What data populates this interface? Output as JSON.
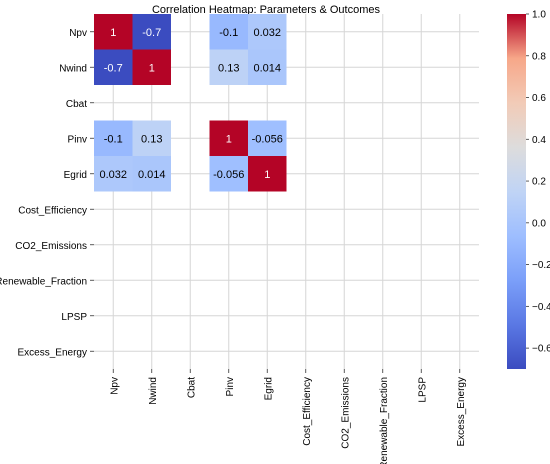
{
  "chart_data": {
    "type": "heatmap",
    "title": "Correlation Heatmap: Parameters & Outcomes",
    "rows": [
      "Npv",
      "Nwind",
      "Cbat",
      "Pinv",
      "Egrid",
      "Cost_Efficiency",
      "CO2_Emissions",
      "Renewable_Fraction",
      "LPSP",
      "Excess_Energy"
    ],
    "columns": [
      "Npv",
      "Nwind",
      "Cbat",
      "Pinv",
      "Egrid",
      "Cost_Efficiency",
      "CO2_Emissions",
      "Renewable_Fraction",
      "LPSP",
      "Excess_Energy"
    ],
    "values": [
      [
        1,
        -0.7,
        null,
        -0.1,
        0.032,
        null,
        null,
        null,
        null,
        null
      ],
      [
        -0.7,
        1,
        null,
        0.13,
        0.014,
        null,
        null,
        null,
        null,
        null
      ],
      [
        null,
        null,
        null,
        null,
        null,
        null,
        null,
        null,
        null,
        null
      ],
      [
        -0.1,
        0.13,
        null,
        1,
        -0.056,
        null,
        null,
        null,
        null,
        null
      ],
      [
        0.032,
        0.014,
        null,
        -0.056,
        1,
        null,
        null,
        null,
        null,
        null
      ],
      [
        null,
        null,
        null,
        null,
        null,
        null,
        null,
        null,
        null,
        null
      ],
      [
        null,
        null,
        null,
        null,
        null,
        null,
        null,
        null,
        null,
        null
      ],
      [
        null,
        null,
        null,
        null,
        null,
        null,
        null,
        null,
        null,
        null
      ],
      [
        null,
        null,
        null,
        null,
        null,
        null,
        null,
        null,
        null,
        null
      ],
      [
        null,
        null,
        null,
        null,
        null,
        null,
        null,
        null,
        null,
        null
      ]
    ],
    "cell_labels": [
      [
        "1",
        "-0.7",
        "",
        "-0.1",
        "0.032",
        "",
        "",
        "",
        "",
        ""
      ],
      [
        "-0.7",
        "1",
        "",
        "0.13",
        "0.014",
        "",
        "",
        "",
        "",
        ""
      ],
      [
        "",
        "",
        "",
        "",
        "",
        "",
        "",
        "",
        "",
        ""
      ],
      [
        "-0.1",
        "0.13",
        "",
        "1",
        "-0.056",
        "",
        "",
        "",
        "",
        ""
      ],
      [
        "0.032",
        "0.014",
        "",
        "-0.056",
        "1",
        "",
        "",
        "",
        "",
        ""
      ],
      [
        "",
        "",
        "",
        "",
        "",
        "",
        "",
        "",
        "",
        ""
      ],
      [
        "",
        "",
        "",
        "",
        "",
        "",
        "",
        "",
        "",
        ""
      ],
      [
        "",
        "",
        "",
        "",
        "",
        "",
        "",
        "",
        "",
        ""
      ],
      [
        "",
        "",
        "",
        "",
        "",
        "",
        "",
        "",
        "",
        ""
      ],
      [
        "",
        "",
        "",
        "",
        "",
        "",
        "",
        "",
        "",
        ""
      ]
    ],
    "colorbar": {
      "colormap": "coolwarm",
      "vmin": -0.7,
      "vmax": 1,
      "ticks": [
        -0.6,
        -0.4,
        -0.2,
        0.0,
        0.2,
        0.4,
        0.6,
        0.8,
        1.0
      ],
      "tick_labels": [
        "−0.6",
        "−0.4",
        "−0.2",
        "0.0",
        "0.2",
        "0.4",
        "0.6",
        "0.8",
        "1.0"
      ]
    },
    "grid": true
  }
}
